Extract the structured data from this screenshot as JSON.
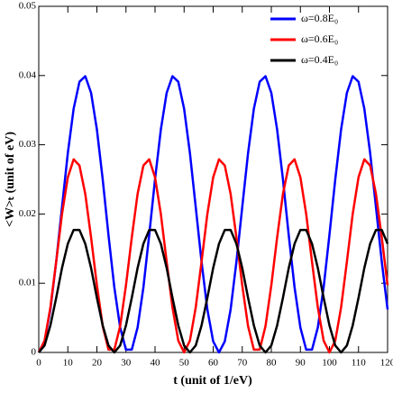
{
  "chart_data": {
    "type": "line",
    "xlabel": "t (unit of 1/eV)",
    "ylabel": "<W>ₜ (unit of eV)",
    "x": [
      0,
      2,
      4,
      6,
      8,
      10,
      12,
      14,
      16,
      18,
      20,
      22,
      24,
      26,
      28,
      30,
      32,
      34,
      36,
      38,
      40,
      42,
      44,
      46,
      48,
      50,
      52,
      54,
      56,
      58,
      60,
      62,
      64,
      66,
      68,
      70,
      72,
      74,
      76,
      78,
      80,
      82,
      84,
      86,
      88,
      90,
      92,
      94,
      96,
      98,
      100,
      102,
      104,
      106,
      108,
      110,
      112,
      114,
      116,
      118,
      120
    ],
    "series": [
      {
        "name": "ω=0.8E₀",
        "color": "#0000ff",
        "values": [
          0,
          0.0016,
          0.0062,
          0.0131,
          0.021,
          0.0288,
          0.0352,
          0.0391,
          0.0399,
          0.0375,
          0.0322,
          0.025,
          0.0169,
          0.0094,
          0.0036,
          0.0004,
          0.0004,
          0.0036,
          0.0094,
          0.017,
          0.025,
          0.0322,
          0.0375,
          0.0399,
          0.0391,
          0.0352,
          0.0288,
          0.021,
          0.0131,
          0.0062,
          0.0016,
          0,
          0.0016,
          0.0062,
          0.0131,
          0.021,
          0.0288,
          0.0352,
          0.0391,
          0.0399,
          0.0375,
          0.0322,
          0.025,
          0.0169,
          0.0094,
          0.0036,
          0.0004,
          0.0004,
          0.0036,
          0.0094,
          0.017,
          0.025,
          0.0322,
          0.0375,
          0.0399,
          0.0391,
          0.0352,
          0.0288,
          0.021,
          0.0131,
          0.0062
        ]
      },
      {
        "name": "ω=0.6E₀",
        "color": "#ff0000",
        "values": [
          0,
          0.0017,
          0.0065,
          0.0131,
          0.02,
          0.0253,
          0.0279,
          0.027,
          0.0229,
          0.0166,
          0.0097,
          0.0038,
          0.0004,
          0.0004,
          0.0038,
          0.0097,
          0.0166,
          0.0229,
          0.027,
          0.0279,
          0.0253,
          0.02,
          0.0131,
          0.0065,
          0.0017,
          0,
          0.0017,
          0.0065,
          0.0131,
          0.02,
          0.0253,
          0.0279,
          0.027,
          0.0229,
          0.0166,
          0.0097,
          0.0038,
          0.0004,
          0.0004,
          0.0038,
          0.0097,
          0.0166,
          0.0229,
          0.027,
          0.0279,
          0.0253,
          0.02,
          0.0131,
          0.0065,
          0.0017,
          0,
          0.0017,
          0.0065,
          0.0131,
          0.02,
          0.0253,
          0.0279,
          0.027,
          0.0229,
          0.0166,
          0.0097
        ]
      },
      {
        "name": "ω=0.4E₀",
        "color": "#000000",
        "values": [
          0,
          0.001,
          0.0039,
          0.0079,
          0.0122,
          0.0157,
          0.0177,
          0.0177,
          0.0157,
          0.0122,
          0.0079,
          0.0039,
          0.001,
          0,
          0.001,
          0.0039,
          0.0079,
          0.0122,
          0.0157,
          0.0177,
          0.0177,
          0.0157,
          0.0122,
          0.0079,
          0.0039,
          0.001,
          0,
          0.001,
          0.0039,
          0.0079,
          0.0122,
          0.0157,
          0.0177,
          0.0177,
          0.0157,
          0.0122,
          0.0079,
          0.0039,
          0.001,
          0,
          0.001,
          0.0039,
          0.0079,
          0.0122,
          0.0157,
          0.0177,
          0.0177,
          0.0157,
          0.0122,
          0.0079,
          0.0039,
          0.001,
          0,
          0.001,
          0.0039,
          0.0079,
          0.0122,
          0.0157,
          0.0177,
          0.0177,
          0.0157
        ]
      }
    ],
    "xlim": [
      0,
      120
    ],
    "xticks": [
      0,
      10,
      20,
      30,
      40,
      50,
      60,
      70,
      80,
      90,
      100,
      110,
      120
    ],
    "ylim": [
      0,
      0.05
    ],
    "yticks": [
      0,
      0.01,
      0.02,
      0.03,
      0.04,
      0.05
    ],
    "grid": false,
    "legend": "upper right"
  }
}
